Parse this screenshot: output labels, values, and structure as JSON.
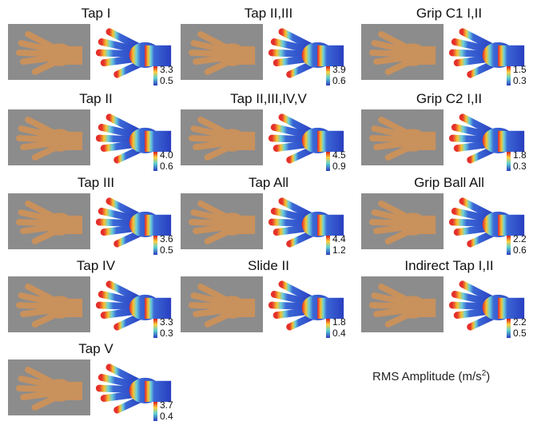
{
  "panels": [
    {
      "title": "Tap I",
      "max": "3.3",
      "min": "0.5"
    },
    {
      "title": "Tap II",
      "max": "4.0",
      "min": "0.6"
    },
    {
      "title": "Tap III",
      "max": "3.6",
      "min": "0.5"
    },
    {
      "title": "Tap IV",
      "max": "3.3",
      "min": "0.3"
    },
    {
      "title": "Tap V",
      "max": "3.7",
      "min": "0.4"
    },
    {
      "title": "Tap II,III",
      "max": "3.9",
      "min": "0.6"
    },
    {
      "title": "Tap II,III,IV,V",
      "max": "4.5",
      "min": "0.9"
    },
    {
      "title": "Tap All",
      "max": "4.4",
      "min": "1.2"
    },
    {
      "title": "Slide II",
      "max": "1.8",
      "min": "0.4"
    },
    {
      "title": "Grip C1 I,II",
      "max": "1.5",
      "min": "0.3"
    },
    {
      "title": "Grip C2 I,II",
      "max": "1.8",
      "min": "0.3"
    },
    {
      "title": "Grip Ball All",
      "max": "2.2",
      "min": "0.6"
    },
    {
      "title": "Indirect Tap I,II",
      "max": "2.2",
      "min": "0.5"
    }
  ],
  "units": {
    "label": "RMS Amplitude (m/s",
    "exponent": "2",
    "close": ")"
  }
}
